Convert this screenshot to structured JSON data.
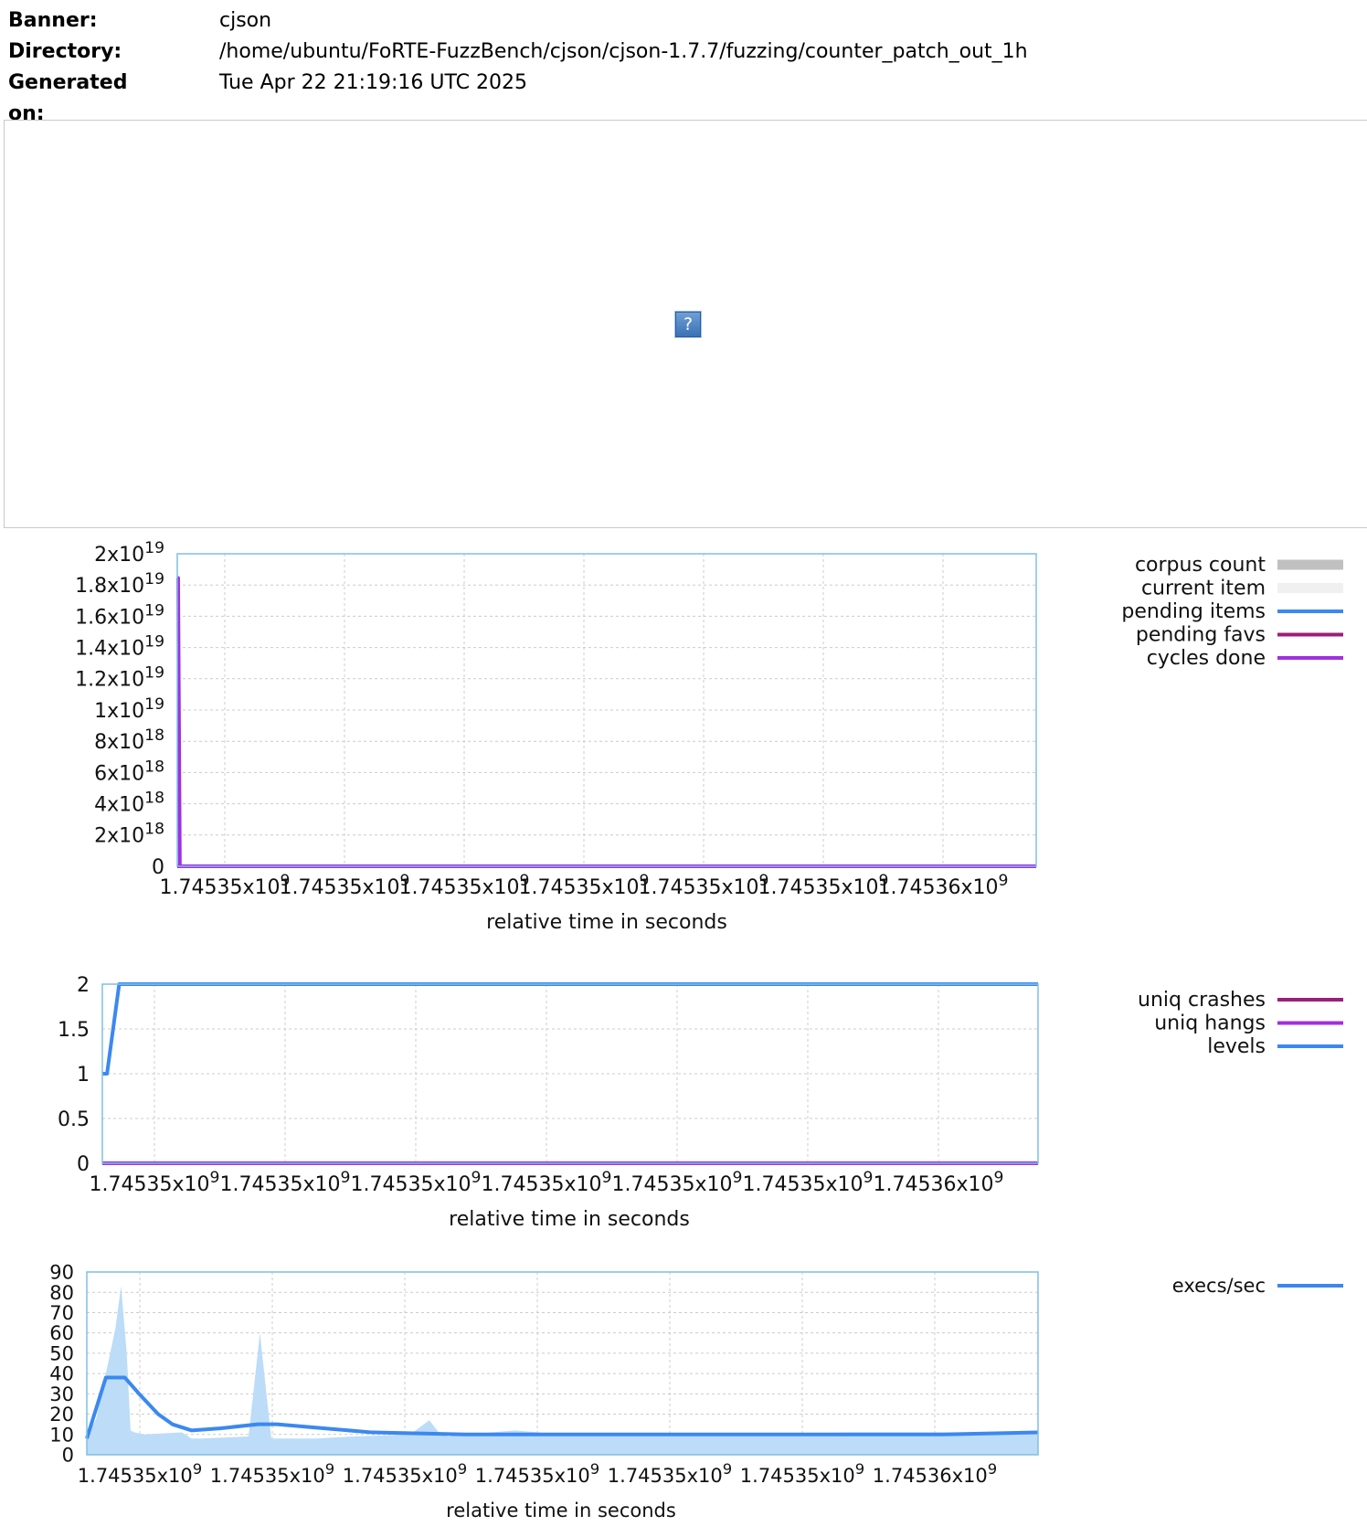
{
  "header": {
    "banner_label": "Banner:",
    "banner_value": "cjson",
    "directory_label": "Directory:",
    "directory_value": "/home/ubuntu/FoRTE-FuzzBench/cjson/cjson-1.7.7/fuzzing/counter_patch_out_1h",
    "generated_label": "Generated on:",
    "generated_value": "Tue Apr 22 21:19:16 UTC 2025"
  },
  "broken_image": {
    "icon": "question-mark-icon",
    "glyph": "?"
  },
  "colors": {
    "axis_border": "#7fbfe6",
    "grid": "#cccccc",
    "corpus_count": "#c0c0c0",
    "current_item": "#f0f0f0",
    "pending_items": "#3b88f0",
    "pending_favs": "#9b1f78",
    "cycles_done": "#a030e0",
    "uniq_crashes": "#9b1f78",
    "uniq_hangs": "#a030e0",
    "levels": "#3b88f0",
    "execs_sec": "#3b88f0",
    "execs_fill": "#bcdcf8"
  },
  "chart_data": [
    {
      "type": "line",
      "xlabel": "relative time in seconds",
      "x_tick_labels": [
        "1.74535x10^9",
        "1.74535x10^9",
        "1.74535x10^9",
        "1.74535x10^9",
        "1.74535x10^9",
        "1.74535x10^9",
        "1.74536x10^9"
      ],
      "y_tick_labels": [
        "0",
        "2x10^18",
        "4x10^18",
        "6x10^18",
        "8x10^18",
        "1x10^19",
        "1.2x10^19",
        "1.4x10^19",
        "1.6x10^19",
        "1.8x10^19",
        "2x10^19"
      ],
      "ylim": [
        0,
        2e+19
      ],
      "grid": true,
      "legend_position": "right",
      "series": [
        {
          "name": "corpus count",
          "style": "filled",
          "values": []
        },
        {
          "name": "current item",
          "style": "filled",
          "values": []
        },
        {
          "name": "pending items",
          "style": "line",
          "x_frac": [
            0,
            1
          ],
          "values": [
            0,
            0
          ]
        },
        {
          "name": "pending favs",
          "style": "line",
          "x_frac": [
            0,
            1
          ],
          "values": [
            0,
            0
          ]
        },
        {
          "name": "cycles done",
          "style": "line",
          "x_frac": [
            0,
            0.001,
            0.003,
            1
          ],
          "values": [
            1.845e+19,
            1.845e+19,
            0,
            0
          ]
        }
      ]
    },
    {
      "type": "line",
      "xlabel": "relative time in seconds",
      "x_tick_labels": [
        "1.74535x10^9",
        "1.74535x10^9",
        "1.74535x10^9",
        "1.74535x10^9",
        "1.74535x10^9",
        "1.74535x10^9",
        "1.74536x10^9"
      ],
      "y_tick_labels": [
        "0",
        "0.5",
        "1",
        "1.5",
        "2"
      ],
      "ylim": [
        0,
        2
      ],
      "grid": true,
      "legend_position": "right",
      "series": [
        {
          "name": "uniq crashes",
          "x_frac": [
            0,
            1
          ],
          "values": [
            0,
            0
          ]
        },
        {
          "name": "uniq hangs",
          "x_frac": [
            0,
            1
          ],
          "values": [
            0,
            0
          ]
        },
        {
          "name": "levels",
          "x_frac": [
            0,
            0.005,
            0.018,
            1
          ],
          "values": [
            1,
            1,
            2,
            2
          ]
        }
      ]
    },
    {
      "type": "area",
      "xlabel": "relative time in seconds",
      "x_tick_labels": [
        "1.74535x10^9",
        "1.74535x10^9",
        "1.74535x10^9",
        "1.74535x10^9",
        "1.74535x10^9",
        "1.74535x10^9",
        "1.74536x10^9"
      ],
      "y_tick_labels": [
        "0",
        "10",
        "20",
        "30",
        "40",
        "50",
        "60",
        "70",
        "80",
        "90"
      ],
      "ylim": [
        0,
        90
      ],
      "grid": true,
      "legend_position": "right",
      "series": [
        {
          "name": "execs/sec",
          "style": "line",
          "x_frac": [
            0,
            0.02,
            0.04,
            0.055,
            0.075,
            0.09,
            0.11,
            0.14,
            0.18,
            0.2,
            0.25,
            0.3,
            0.4,
            0.5,
            0.6,
            0.7,
            0.8,
            0.9,
            1
          ],
          "values": [
            8,
            38,
            38,
            30,
            20,
            15,
            12,
            13,
            15,
            15,
            13,
            11,
            10,
            10,
            10,
            10,
            10,
            10,
            11
          ]
        },
        {
          "name": "execs/sec (raw)",
          "style": "filled",
          "x_frac": [
            0,
            0.01,
            0.02,
            0.03,
            0.036,
            0.042,
            0.046,
            0.05,
            0.06,
            0.1,
            0.11,
            0.12,
            0.17,
            0.182,
            0.19,
            0.194,
            0.2,
            0.24,
            0.28,
            0.34,
            0.36,
            0.37,
            0.38,
            0.4,
            0.45,
            0.5,
            0.6,
            0.7,
            0.8,
            0.9,
            1
          ],
          "values": [
            8,
            18,
            40,
            62,
            83,
            50,
            12,
            11,
            10,
            11,
            8,
            8,
            9,
            60,
            25,
            8,
            8,
            8,
            9,
            10,
            17,
            11,
            9,
            10,
            12,
            10,
            10,
            10,
            11,
            11,
            11
          ]
        }
      ]
    }
  ]
}
